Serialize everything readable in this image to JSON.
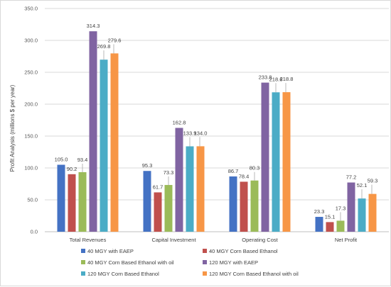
{
  "chart_data": {
    "type": "bar",
    "title": "",
    "xlabel": "",
    "ylabel": "Profit Analysis (millions $ per year)",
    "ylim": [
      0,
      350
    ],
    "yticks": [
      "0.0",
      "50.0",
      "100.0",
      "150.0",
      "200.0",
      "250.0",
      "300.0",
      "350.0"
    ],
    "grid": true,
    "legend_position": "bottom",
    "categories": [
      "Total Revenues",
      "Capital Investment",
      "Operating Cost",
      "Net Profit"
    ],
    "series": [
      {
        "name": "40 MGY with EAEP",
        "color": "#4472c4",
        "values": [
          105.0,
          95.3,
          86.7,
          23.3
        ],
        "labels": [
          "105.0",
          "95.3",
          "86.7",
          "23.3"
        ]
      },
      {
        "name": "40 MGY Corn Based Ethanol",
        "color": "#c0504d",
        "values": [
          90.2,
          61.7,
          78.4,
          15.1
        ],
        "labels": [
          "90.2",
          "61.7",
          "78.4",
          "15.1"
        ]
      },
      {
        "name": "40 MGY Corn Based Ethanol with oil",
        "color": "#9bbb59",
        "values": [
          93.4,
          73.3,
          80.3,
          17.3
        ],
        "labels": [
          "93.4",
          "73.3",
          "80.3",
          "17.3"
        ]
      },
      {
        "name": "120 MGY with EAEP",
        "color": "#8064a2",
        "values": [
          314.3,
          162.8,
          233.8,
          77.2
        ],
        "labels": [
          "314.3",
          "162.8",
          "233.8",
          "77.2"
        ]
      },
      {
        "name": "120 MGY Corn Based Ethanol",
        "color": "#4bacc6",
        "values": [
          269.8,
          133.9,
          218.6,
          52.1
        ],
        "labels": [
          "269.8",
          "133.9",
          "218.6",
          "52.1"
        ]
      },
      {
        "name": "120 MGY Corn Based Ethanol with oil",
        "color": "#f79646",
        "values": [
          279.6,
          134.0,
          218.8,
          59.3
        ],
        "labels": [
          "279.6",
          "134.0",
          "218.8",
          "59.3"
        ]
      }
    ]
  }
}
